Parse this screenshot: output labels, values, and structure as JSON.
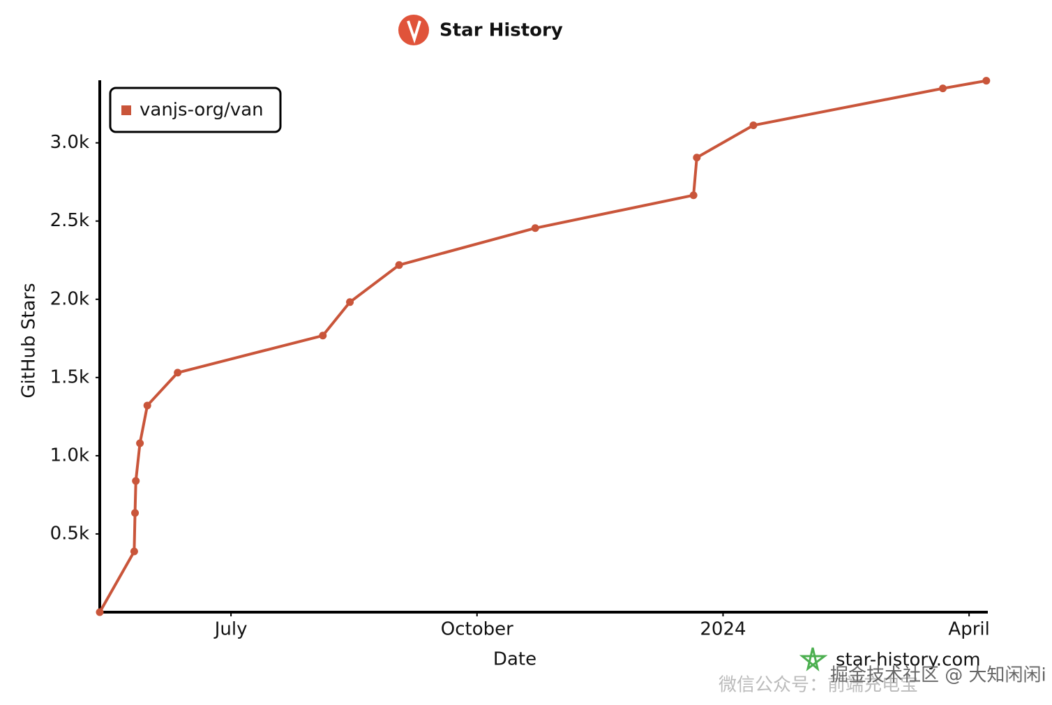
{
  "chart_data": {
    "type": "line",
    "title": "Star History",
    "xlabel": "Date",
    "ylabel": "GitHub Stars",
    "x": [
      5.4,
      5.82,
      5.83,
      5.84,
      5.89,
      5.98,
      6.35,
      8.12,
      8.45,
      9.05,
      10.71,
      12.64,
      12.68,
      13.37,
      15.68,
      16.21
    ],
    "series": [
      {
        "name": "vanjs-org/van",
        "color": "#c9553a",
        "values": [
          0,
          388,
          634,
          839,
          1080,
          1321,
          1531,
          1768,
          1982,
          2219,
          2455,
          2665,
          2906,
          3112,
          3348,
          3397
        ]
      }
    ],
    "xlim": [
      5.4,
      16.22
    ],
    "ylim": [
      0,
      3400
    ],
    "xticks": [
      {
        "value": 7,
        "label": "July"
      },
      {
        "value": 10,
        "label": "October"
      },
      {
        "value": 13,
        "label": "2024"
      },
      {
        "value": 16,
        "label": "April"
      }
    ],
    "yticks": [
      {
        "value": 500,
        "label": "0.5k"
      },
      {
        "value": 1000,
        "label": "1.0k"
      },
      {
        "value": 1500,
        "label": "1.5k"
      },
      {
        "value": 2000,
        "label": "2.0k"
      },
      {
        "value": 2500,
        "label": "2.5k"
      },
      {
        "value": 3000,
        "label": "3.0k"
      }
    ],
    "legend": "top-left",
    "watermarks": [
      "star-history.com",
      "微信公众号：前端充电宝",
      "掘金技术社区 @ 大知闲闲i"
    ]
  }
}
